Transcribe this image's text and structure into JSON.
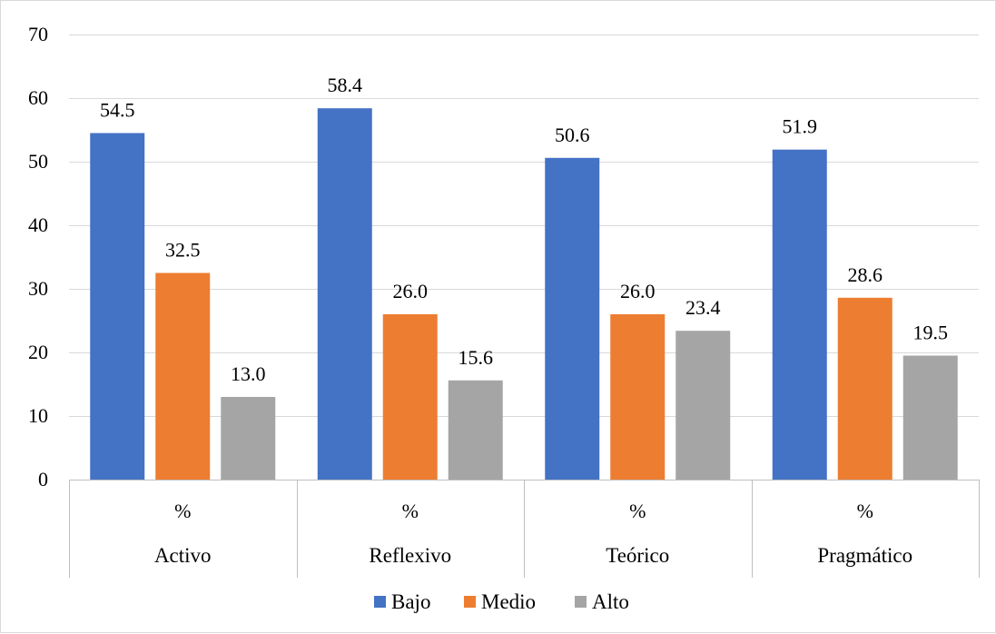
{
  "chart_data": {
    "type": "bar",
    "title": "",
    "xlabel": "",
    "ylabel": "",
    "ylim": [
      0,
      70
    ],
    "yticks": [
      0,
      10,
      20,
      30,
      40,
      50,
      60,
      70
    ],
    "grid": true,
    "legend_position": "bottom",
    "categories": [
      {
        "sub": "%",
        "label": "Activo"
      },
      {
        "sub": "%",
        "label": "Reflexivo"
      },
      {
        "sub": "%",
        "label": "Teórico"
      },
      {
        "sub": "%",
        "label": "Pragmático"
      }
    ],
    "series": [
      {
        "name": "Bajo",
        "color": "#4472c4",
        "values": [
          54.5,
          58.4,
          50.6,
          51.9
        ],
        "labels": [
          "54.5",
          "58.4",
          "50.6",
          "51.9"
        ]
      },
      {
        "name": "Medio",
        "color": "#ed7d31",
        "values": [
          32.5,
          26.0,
          26.0,
          28.6
        ],
        "labels": [
          "32.5",
          "26.0",
          "26.0",
          "28.6"
        ]
      },
      {
        "name": "Alto",
        "color": "#a5a5a5",
        "values": [
          13.0,
          15.6,
          23.4,
          19.5
        ],
        "labels": [
          "13.0",
          "15.6",
          "23.4",
          "19.5"
        ]
      }
    ],
    "colors": {
      "grid": "#d9d9d9",
      "axis": "#bfbfbf"
    }
  }
}
